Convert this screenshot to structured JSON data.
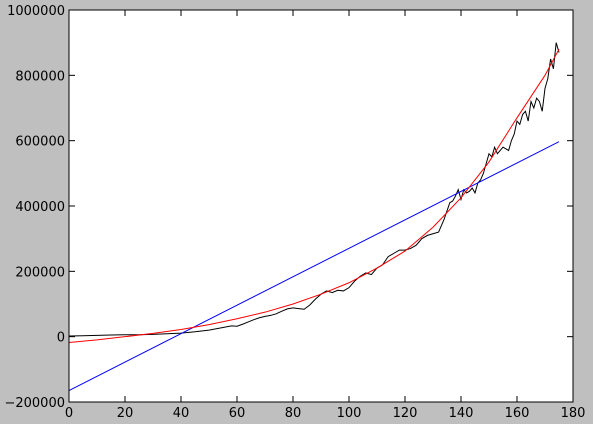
{
  "chart_data": {
    "type": "line",
    "title": "",
    "xlabel": "",
    "ylabel": "",
    "xlim": [
      0,
      180
    ],
    "ylim": [
      -200000,
      1000000
    ],
    "grid": false,
    "x_ticks": [
      0,
      20,
      40,
      60,
      80,
      100,
      120,
      140,
      160,
      180
    ],
    "x_tick_labels": [
      "0",
      "20",
      "40",
      "60",
      "80",
      "100",
      "120",
      "140",
      "160",
      "180"
    ],
    "y_ticks": [
      -200000,
      0,
      200000,
      400000,
      600000,
      800000,
      1000000
    ],
    "y_tick_labels": [
      "−200000",
      "0",
      "200000",
      "400000",
      "600000",
      "800000",
      "1000000"
    ],
    "series": [
      {
        "color": "#000000",
        "x": [
          0,
          5,
          10,
          15,
          20,
          25,
          30,
          35,
          40,
          45,
          50,
          55,
          58,
          60,
          62,
          64,
          66,
          68,
          70,
          72,
          74,
          76,
          78,
          80,
          82,
          84,
          86,
          88,
          90,
          92,
          94,
          96,
          98,
          100,
          102,
          104,
          106,
          108,
          110,
          112,
          114,
          116,
          118,
          120,
          122,
          124,
          126,
          128,
          130,
          132,
          134,
          136,
          137,
          138,
          139,
          140,
          141,
          142,
          143,
          144,
          145,
          146,
          147,
          148,
          149,
          150,
          151,
          152,
          153,
          154,
          155,
          156,
          157,
          158,
          159,
          160,
          161,
          162,
          163,
          164,
          165,
          166,
          167,
          168,
          169,
          170,
          171,
          172,
          173,
          174,
          175
        ],
        "y": [
          2000,
          3000,
          4000,
          5000,
          6000,
          6000,
          7000,
          9000,
          11000,
          15000,
          20000,
          28000,
          33000,
          32000,
          38000,
          45000,
          52000,
          58000,
          62000,
          65000,
          70000,
          78000,
          85000,
          88000,
          86000,
          84000,
          97000,
          115000,
          130000,
          140000,
          135000,
          142000,
          140000,
          150000,
          170000,
          185000,
          195000,
          190000,
          210000,
          220000,
          245000,
          255000,
          265000,
          265000,
          270000,
          280000,
          300000,
          310000,
          315000,
          320000,
          360000,
          410000,
          415000,
          430000,
          450000,
          420000,
          450000,
          440000,
          445000,
          455000,
          440000,
          470000,
          480000,
          500000,
          530000,
          560000,
          550000,
          580000,
          560000,
          570000,
          580000,
          575000,
          570000,
          600000,
          620000,
          660000,
          650000,
          680000,
          690000,
          660000,
          720000,
          700000,
          730000,
          720000,
          690000,
          760000,
          790000,
          850000,
          820000,
          900000,
          870000
        ]
      },
      {
        "color": "#0000ff",
        "x": [
          0,
          175
        ],
        "y": [
          -165000,
          597000
        ]
      },
      {
        "color": "#ff0000",
        "x": [
          0,
          10,
          20,
          30,
          40,
          50,
          60,
          70,
          80,
          90,
          100,
          110,
          120,
          130,
          140,
          150,
          160,
          170,
          175
        ],
        "y": [
          -18000,
          -10000,
          0,
          10000,
          22000,
          37000,
          55000,
          75000,
          100000,
          130000,
          165000,
          210000,
          262000,
          335000,
          425000,
          535000,
          670000,
          800000,
          880000
        ]
      }
    ]
  }
}
